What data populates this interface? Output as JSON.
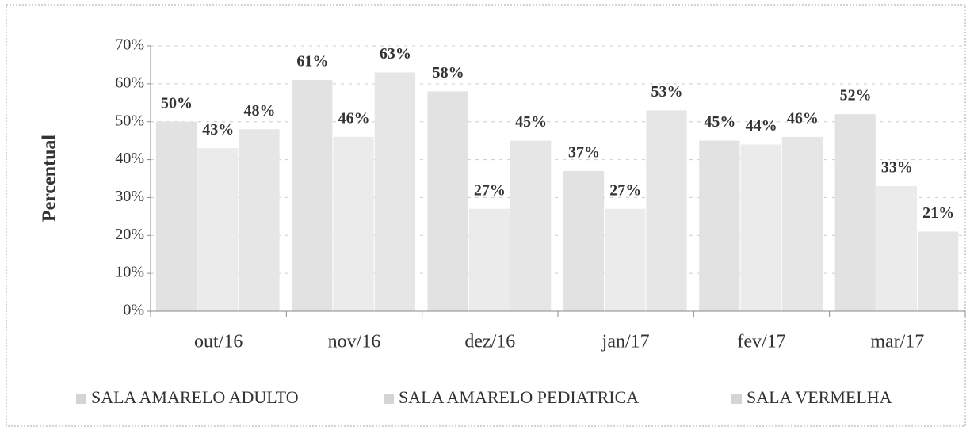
{
  "chart_data": {
    "type": "bar",
    "y_label": "Percentual",
    "categories": [
      "out/16",
      "nov/16",
      "dez/16",
      "jan/17",
      "fev/17",
      "mar/17"
    ],
    "series": [
      {
        "name": "SALA AMARELO ADULTO",
        "color": "#e2e2e2",
        "values": [
          50,
          61,
          58,
          37,
          45,
          52
        ],
        "value_labels": [
          "50%",
          "61%",
          "58%",
          "37%",
          "45%",
          "52%"
        ]
      },
      {
        "name": "SALA AMARELO PEDIATRICA",
        "color": "#ebebeb",
        "values": [
          43,
          46,
          27,
          27,
          44,
          33
        ],
        "value_labels": [
          "43%",
          "46%",
          "27%",
          "27%",
          "44%",
          "33%"
        ]
      },
      {
        "name": "SALA VERMELHA",
        "color": "#e6e6e6",
        "values": [
          48,
          63,
          45,
          53,
          46,
          21
        ],
        "value_labels": [
          "48%",
          "63%",
          "45%",
          "53%",
          "46%",
          "21%"
        ]
      }
    ],
    "ylim": [
      0,
      70
    ],
    "yticks": [
      {
        "value": 0,
        "label": "0%"
      },
      {
        "value": 10,
        "label": "10%"
      },
      {
        "value": 20,
        "label": "20%"
      },
      {
        "value": 30,
        "label": "30%"
      },
      {
        "value": 40,
        "label": "40%"
      },
      {
        "value": 50,
        "label": "50%"
      },
      {
        "value": 60,
        "label": "60%"
      },
      {
        "value": 70,
        "label": "70%"
      }
    ],
    "grid": true,
    "legend": "bottom"
  }
}
